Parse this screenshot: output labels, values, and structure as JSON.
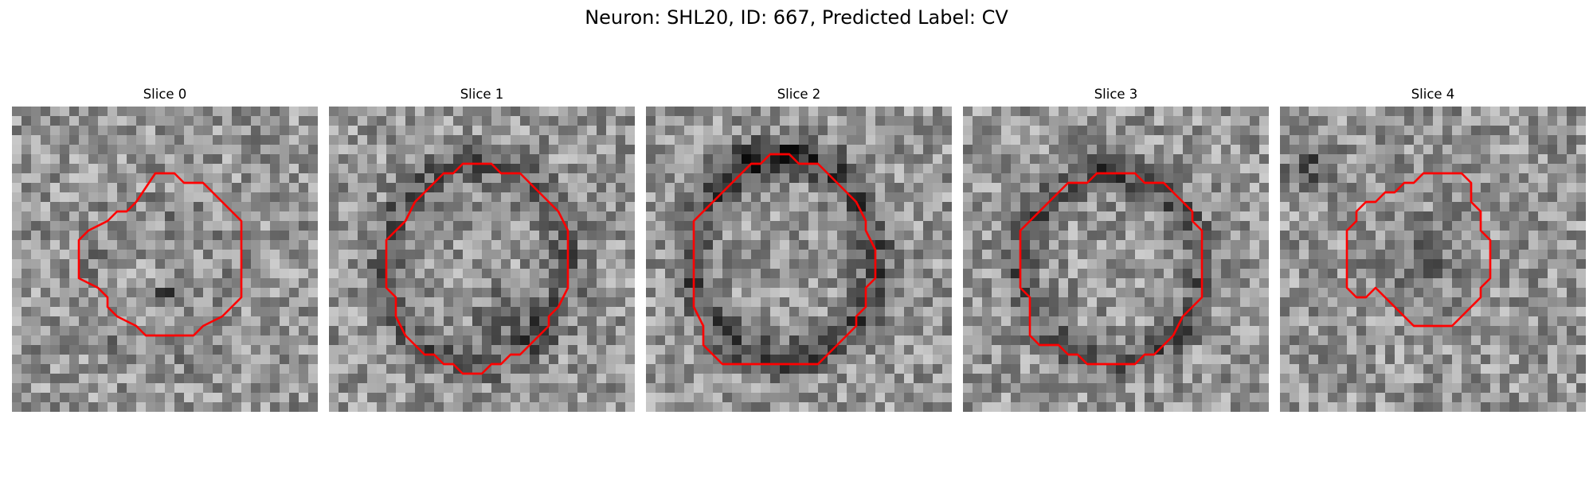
{
  "figure": {
    "title": "Neuron: SHL20, ID: 667, Predicted Label: CV",
    "outline_color": "#ff0000",
    "colormap": "gray",
    "slices": [
      {
        "title": "Slice 0",
        "seed": 11
      },
      {
        "title": "Slice 1",
        "seed": 23
      },
      {
        "title": "Slice 2",
        "seed": 37
      },
      {
        "title": "Slice 3",
        "seed": 41
      },
      {
        "title": "Slice 4",
        "seed": 59
      }
    ]
  }
}
